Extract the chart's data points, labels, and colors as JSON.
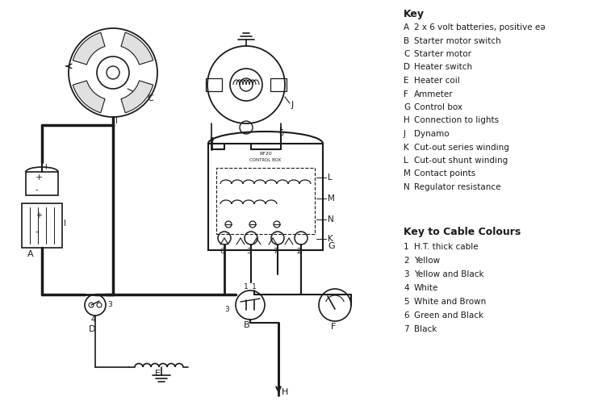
{
  "bg_color": "#ffffff",
  "line_color": "#1a1a1a",
  "key_title": "Key",
  "key_items": [
    [
      "A",
      "2 x 6 volt batteries, positive eə"
    ],
    [
      "B",
      "Starter motor switch"
    ],
    [
      "C",
      "Starter motor"
    ],
    [
      "D",
      "Heater switch"
    ],
    [
      "E",
      "Heater coil"
    ],
    [
      "F",
      "Ammeter"
    ],
    [
      "G",
      "Control box"
    ],
    [
      "H",
      "Connection to lights"
    ],
    [
      "J",
      "Dynamo"
    ],
    [
      "K",
      "Cut-out series winding"
    ],
    [
      "L",
      "Cut-out shunt winding"
    ],
    [
      "M",
      "Contact points"
    ],
    [
      "N",
      "Regulator resistance"
    ]
  ],
  "cable_title": "Key to Cable Colours",
  "cable_items": [
    [
      "1",
      "H.T. thick cable"
    ],
    [
      "2",
      "Yellow"
    ],
    [
      "3",
      "Yellow and Black"
    ],
    [
      "4",
      "White"
    ],
    [
      "5",
      "White and Brown"
    ],
    [
      "6",
      "Green and Black"
    ],
    [
      "7",
      "Black"
    ]
  ]
}
